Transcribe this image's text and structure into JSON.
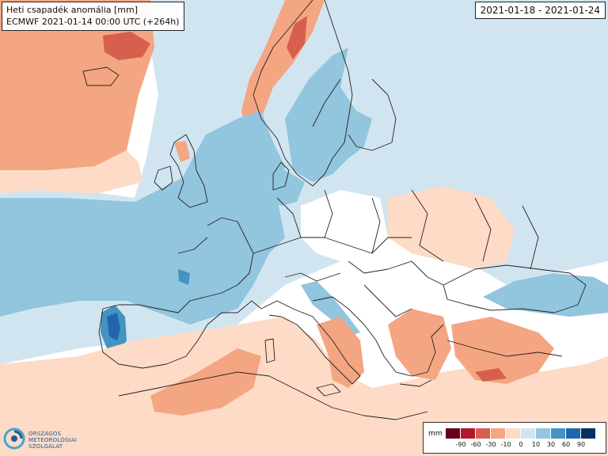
{
  "title_line1": "Heti csapadék anomália [mm]",
  "title_line2": "ECMWF 2021-01-14 00:00 UTC (+264h)",
  "date_range": "2021-01-18 - 2021-01-24",
  "logo": {
    "line1": "ORSZÁGOS",
    "line2": "METEOROLÓGIAI",
    "line3": "SZOLGÁLAT",
    "icon": "omsz-swirl-logo-icon"
  },
  "legend": {
    "unit": "mm",
    "ticks": [
      "-90",
      "-60",
      "-30",
      "-10",
      "0",
      "10",
      "30",
      "60",
      "90"
    ],
    "colors": [
      "#67001f",
      "#b2182b",
      "#d6604d",
      "#f4a582",
      "#fddbc7",
      "#d1e5f0",
      "#92c5de",
      "#4393c3",
      "#2166ac",
      "#053061"
    ]
  },
  "palette": {
    "dry_light": "#fddbc7",
    "dry_mid": "#f4a582",
    "dry_strong": "#d6604d",
    "wet_light": "#d1e5f0",
    "wet_mid": "#92c5de",
    "wet_strong": "#4393c3",
    "wet_very": "#2166ac",
    "neutral": "#ffffff",
    "borders": "#222222"
  }
}
